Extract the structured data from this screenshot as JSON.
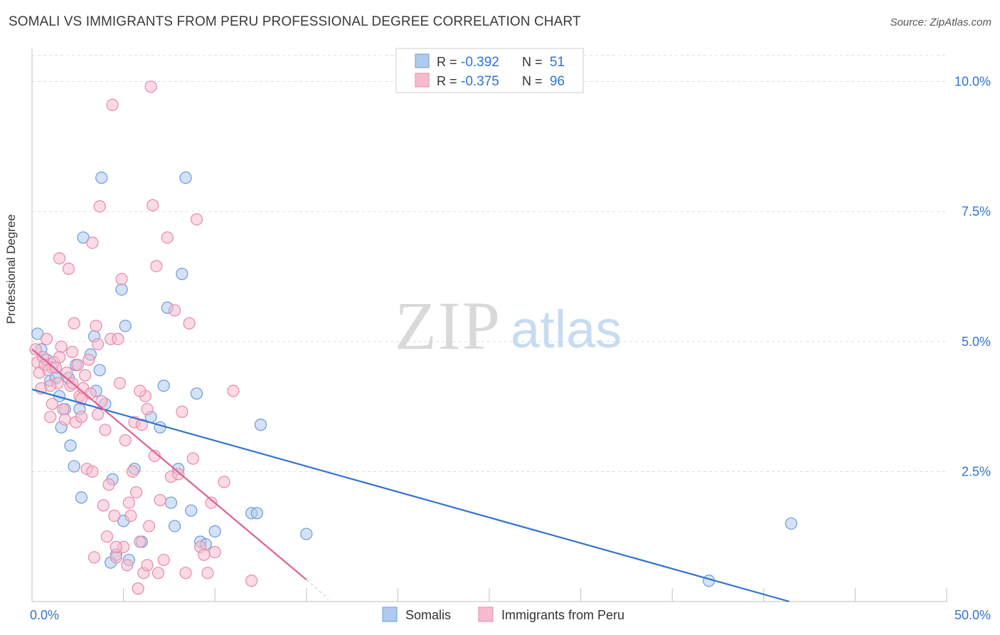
{
  "title": "SOMALI VS IMMIGRANTS FROM PERU PROFESSIONAL DEGREE CORRELATION CHART",
  "source": "Source: ZipAtlas.com",
  "watermark": {
    "zip": "ZIP",
    "atlas": "atlas"
  },
  "colors": {
    "somalis_fill": "#aecbef",
    "somalis_stroke": "#6a9bd8",
    "somalis_line": "#2f74d0",
    "peru_fill": "#f6bccd",
    "peru_stroke": "#e88aa6",
    "peru_line": "#e0608c",
    "value_text": "#2f74d0",
    "grid": "#dddddd"
  },
  "legend": {
    "rows": [
      {
        "r_label": "R =",
        "r_value": "-0.392",
        "n_label": "N =",
        "n_value": "51",
        "series": "somalis"
      },
      {
        "r_label": "R =",
        "r_value": "-0.375",
        "n_label": "N =",
        "n_value": "96",
        "series": "peru"
      }
    ]
  },
  "bottom_legend": [
    {
      "label": "Somalis",
      "series": "somalis"
    },
    {
      "label": "Immigrants from Peru",
      "series": "peru"
    }
  ],
  "chart_data": {
    "type": "scatter",
    "xlabel": "",
    "ylabel": "Professional Degree",
    "xlim": [
      0,
      50
    ],
    "ylim": [
      0,
      10.5
    ],
    "x_tick_labels": [
      {
        "value": 0,
        "label": "0.0%"
      },
      {
        "value": 50,
        "label": "50.0%"
      }
    ],
    "y_tick_labels": [
      {
        "value": 2.5,
        "label": "2.5%"
      },
      {
        "value": 5.0,
        "label": "5.0%"
      },
      {
        "value": 7.5,
        "label": "7.5%"
      },
      {
        "value": 10.0,
        "label": "10.0%"
      }
    ],
    "grid": true,
    "series": [
      {
        "name": "Somalis",
        "key": "somalis",
        "trend": {
          "x": [
            0,
            41.4
          ],
          "y": [
            4.08,
            0.0
          ]
        },
        "points": [
          [
            0.3,
            5.15
          ],
          [
            0.5,
            4.85
          ],
          [
            0.8,
            4.65
          ],
          [
            1.0,
            4.25
          ],
          [
            1.1,
            4.5
          ],
          [
            1.3,
            4.3
          ],
          [
            1.5,
            3.95
          ],
          [
            1.6,
            3.35
          ],
          [
            1.8,
            3.7
          ],
          [
            2.0,
            4.3
          ],
          [
            2.1,
            3.0
          ],
          [
            2.3,
            2.6
          ],
          [
            2.4,
            4.55
          ],
          [
            2.6,
            3.7
          ],
          [
            2.7,
            2.0
          ],
          [
            2.8,
            7.0
          ],
          [
            3.2,
            4.75
          ],
          [
            3.4,
            5.1
          ],
          [
            3.5,
            4.05
          ],
          [
            3.7,
            4.45
          ],
          [
            3.8,
            8.15
          ],
          [
            4.0,
            3.8
          ],
          [
            4.3,
            0.75
          ],
          [
            4.4,
            2.35
          ],
          [
            4.6,
            0.9
          ],
          [
            4.9,
            6.0
          ],
          [
            5.0,
            1.55
          ],
          [
            5.1,
            5.3
          ],
          [
            5.3,
            0.8
          ],
          [
            5.6,
            2.55
          ],
          [
            6.0,
            1.15
          ],
          [
            6.5,
            3.55
          ],
          [
            7.0,
            3.35
          ],
          [
            7.2,
            4.15
          ],
          [
            7.4,
            5.65
          ],
          [
            7.6,
            1.9
          ],
          [
            7.8,
            1.45
          ],
          [
            8.0,
            2.55
          ],
          [
            8.2,
            6.3
          ],
          [
            8.4,
            8.15
          ],
          [
            8.7,
            1.75
          ],
          [
            9.0,
            4.0
          ],
          [
            9.2,
            1.15
          ],
          [
            9.5,
            1.1
          ],
          [
            10.0,
            1.35
          ],
          [
            12.0,
            1.7
          ],
          [
            12.3,
            1.7
          ],
          [
            12.5,
            3.4
          ],
          [
            15.0,
            1.3
          ],
          [
            37.0,
            0.4
          ],
          [
            41.5,
            1.5
          ]
        ]
      },
      {
        "name": "Immigrants from Peru",
        "key": "peru",
        "trend": {
          "x": [
            0,
            15.0
          ],
          "y": [
            4.85,
            0.42
          ]
        },
        "trend_dashed": {
          "x": [
            15.0,
            16.2
          ],
          "y": [
            0.42,
            0.05
          ]
        },
        "points": [
          [
            0.2,
            4.85
          ],
          [
            0.3,
            4.6
          ],
          [
            0.4,
            4.4
          ],
          [
            0.5,
            4.1
          ],
          [
            0.6,
            4.7
          ],
          [
            0.7,
            4.55
          ],
          [
            0.8,
            5.05
          ],
          [
            0.9,
            4.45
          ],
          [
            1.0,
            3.55
          ],
          [
            1.1,
            3.8
          ],
          [
            1.2,
            4.6
          ],
          [
            1.3,
            4.5
          ],
          [
            1.4,
            4.2
          ],
          [
            1.5,
            6.6
          ],
          [
            1.6,
            4.9
          ],
          [
            1.7,
            3.7
          ],
          [
            1.8,
            3.5
          ],
          [
            1.9,
            4.4
          ],
          [
            2.0,
            6.4
          ],
          [
            2.1,
            4.15
          ],
          [
            2.2,
            4.8
          ],
          [
            2.3,
            5.35
          ],
          [
            2.4,
            3.45
          ],
          [
            2.5,
            4.55
          ],
          [
            2.6,
            3.95
          ],
          [
            2.7,
            3.55
          ],
          [
            2.8,
            4.1
          ],
          [
            2.9,
            4.35
          ],
          [
            3.0,
            2.55
          ],
          [
            3.1,
            4.65
          ],
          [
            3.2,
            4.0
          ],
          [
            3.3,
            2.5
          ],
          [
            3.4,
            0.85
          ],
          [
            3.5,
            5.3
          ],
          [
            3.6,
            4.95
          ],
          [
            3.7,
            7.6
          ],
          [
            3.8,
            3.85
          ],
          [
            3.9,
            1.85
          ],
          [
            4.0,
            3.3
          ],
          [
            4.1,
            1.25
          ],
          [
            4.2,
            2.25
          ],
          [
            4.3,
            5.05
          ],
          [
            4.4,
            9.55
          ],
          [
            4.5,
            1.65
          ],
          [
            4.6,
            0.85
          ],
          [
            4.7,
            5.05
          ],
          [
            4.8,
            4.2
          ],
          [
            4.9,
            6.2
          ],
          [
            5.0,
            1.05
          ],
          [
            5.1,
            3.1
          ],
          [
            5.2,
            0.7
          ],
          [
            5.3,
            1.9
          ],
          [
            5.4,
            1.65
          ],
          [
            5.5,
            2.5
          ],
          [
            5.6,
            3.45
          ],
          [
            5.7,
            2.1
          ],
          [
            5.8,
            0.25
          ],
          [
            5.9,
            1.15
          ],
          [
            6.0,
            3.4
          ],
          [
            6.1,
            0.55
          ],
          [
            6.2,
            3.95
          ],
          [
            6.3,
            0.7
          ],
          [
            6.4,
            1.45
          ],
          [
            6.5,
            9.9
          ],
          [
            6.6,
            7.62
          ],
          [
            6.7,
            2.8
          ],
          [
            6.8,
            6.45
          ],
          [
            6.9,
            0.55
          ],
          [
            7.0,
            1.95
          ],
          [
            7.2,
            0.8
          ],
          [
            7.4,
            7.0
          ],
          [
            7.6,
            2.4
          ],
          [
            7.8,
            5.6
          ],
          [
            8.0,
            2.45
          ],
          [
            8.2,
            3.65
          ],
          [
            8.4,
            0.55
          ],
          [
            8.6,
            5.35
          ],
          [
            8.8,
            2.75
          ],
          [
            9.0,
            7.35
          ],
          [
            9.2,
            1.05
          ],
          [
            9.4,
            0.9
          ],
          [
            9.6,
            0.55
          ],
          [
            9.8,
            1.9
          ],
          [
            10.0,
            0.95
          ],
          [
            10.5,
            2.3
          ],
          [
            11.0,
            4.05
          ],
          [
            12.0,
            0.4
          ],
          [
            3.3,
            6.9
          ],
          [
            1.0,
            4.15
          ],
          [
            1.5,
            4.7
          ],
          [
            2.2,
            4.2
          ],
          [
            3.6,
            3.6
          ],
          [
            4.6,
            1.05
          ],
          [
            5.9,
            4.05
          ],
          [
            6.3,
            3.7
          ],
          [
            2.7,
            3.9
          ]
        ]
      }
    ]
  }
}
